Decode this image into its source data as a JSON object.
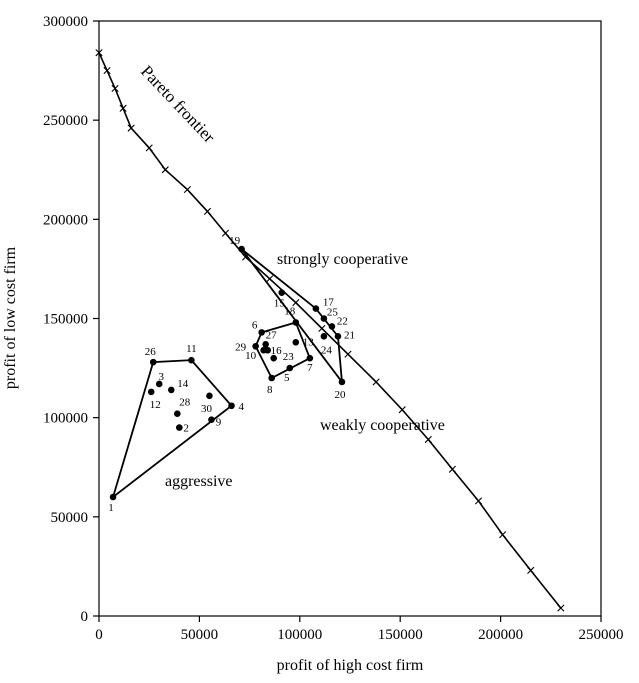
{
  "chart_data": {
    "type": "scatter",
    "xlabel": "profit of high cost firm",
    "ylabel": "profit of low cost firm",
    "xlim": [
      0,
      250000
    ],
    "ylim": [
      0,
      300000
    ],
    "x_ticks": [
      0,
      50000,
      100000,
      150000,
      200000,
      250000
    ],
    "x_tick_labels": [
      "0",
      "50000",
      "100000",
      "150000",
      "200000",
      "250000"
    ],
    "y_ticks": [
      0,
      50000,
      100000,
      150000,
      200000,
      250000,
      300000
    ],
    "y_tick_labels": [
      "0",
      "50000",
      "100000",
      "150000",
      "200000",
      "250000",
      "300000"
    ],
    "grid": false,
    "frontier": {
      "label": "Pareto frontier",
      "points": [
        [
          0,
          284000
        ],
        [
          4000,
          275000
        ],
        [
          8000,
          266000
        ],
        [
          12000,
          256000
        ],
        [
          16000,
          246000
        ],
        [
          25000,
          236000
        ],
        [
          33000,
          225000
        ],
        [
          44000,
          215000
        ],
        [
          54000,
          204000
        ],
        [
          63000,
          193000
        ],
        [
          73000,
          181000
        ],
        [
          85000,
          170000
        ],
        [
          98000,
          158000
        ],
        [
          111000,
          145000
        ],
        [
          124000,
          132000
        ],
        [
          138000,
          118000
        ],
        [
          151000,
          104000
        ],
        [
          164000,
          89000
        ],
        [
          176000,
          74000
        ],
        [
          189000,
          58000
        ],
        [
          201000,
          41000
        ],
        [
          215000,
          23000
        ],
        [
          230000,
          4000
        ]
      ]
    },
    "points": [
      {
        "id": "1",
        "x": 7000,
        "y": 60000
      },
      {
        "id": "2",
        "x": 40000,
        "y": 95000
      },
      {
        "id": "3",
        "x": 30000,
        "y": 117000
      },
      {
        "id": "4",
        "x": 66000,
        "y": 106000
      },
      {
        "id": "5",
        "x": 95000,
        "y": 125000
      },
      {
        "id": "6",
        "x": 81000,
        "y": 143000
      },
      {
        "id": "7",
        "x": 105000,
        "y": 130000
      },
      {
        "id": "8",
        "x": 86000,
        "y": 120000
      },
      {
        "id": "9",
        "x": 56000,
        "y": 99000
      },
      {
        "id": "10",
        "x": 82000,
        "y": 134000
      },
      {
        "id": "11",
        "x": 46000,
        "y": 129000
      },
      {
        "id": "12",
        "x": 26000,
        "y": 113000
      },
      {
        "id": "13",
        "x": 98000,
        "y": 138000
      },
      {
        "id": "14",
        "x": 36000,
        "y": 114000
      },
      {
        "id": "15",
        "x": 91000,
        "y": 163000
      },
      {
        "id": "16",
        "x": 84000,
        "y": 134000
      },
      {
        "id": "17",
        "x": 108000,
        "y": 155000
      },
      {
        "id": "18",
        "x": 98000,
        "y": 148000
      },
      {
        "id": "19",
        "x": 71000,
        "y": 185000
      },
      {
        "id": "20",
        "x": 121000,
        "y": 118000
      },
      {
        "id": "21",
        "x": 119000,
        "y": 141000
      },
      {
        "id": "22",
        "x": 116000,
        "y": 146000
      },
      {
        "id": "23",
        "x": 87000,
        "y": 130000
      },
      {
        "id": "24",
        "x": 112000,
        "y": 141000
      },
      {
        "id": "25",
        "x": 112000,
        "y": 150000
      },
      {
        "id": "26",
        "x": 27000,
        "y": 128000
      },
      {
        "id": "27",
        "x": 83000,
        "y": 137000
      },
      {
        "id": "28",
        "x": 39000,
        "y": 102000
      },
      {
        "id": "29",
        "x": 78000,
        "y": 136000
      },
      {
        "id": "30",
        "x": 55000,
        "y": 111000
      }
    ],
    "regions": [
      {
        "name": "aggressive",
        "hull": [
          "1",
          "26",
          "11",
          "4"
        ]
      },
      {
        "name": "weakly cooperative",
        "hull": [
          "29",
          "6",
          "18",
          "7",
          "8"
        ]
      },
      {
        "name": "strongly cooperative",
        "hull": [
          "19",
          "20",
          "21",
          "17"
        ]
      }
    ],
    "annotations": [
      "strongly cooperative",
      "weakly cooperative",
      "aggressive"
    ]
  }
}
